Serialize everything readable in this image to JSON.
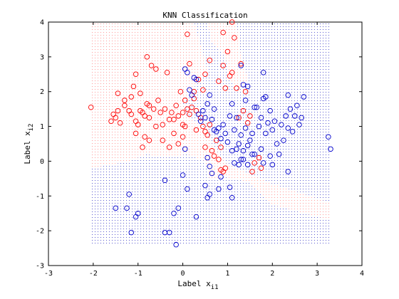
{
  "chart_data": {
    "type": "scatter",
    "title": "KNN Classification",
    "xlabel": "Label x",
    "xlabel_sub": "i1",
    "ylabel": "Label x",
    "ylabel_sub": "i2",
    "xlim": [
      -3,
      4
    ],
    "ylim": [
      -3,
      4
    ],
    "xticks": [
      "-3",
      "-2",
      "-1",
      "0",
      "1",
      "2",
      "3",
      "4"
    ],
    "yticks": [
      "-3",
      "-2",
      "-1",
      "0",
      "1",
      "2",
      "3",
      "4"
    ],
    "grid": false,
    "legend": "none",
    "colors": {
      "red": "#ff0000",
      "blue": "#0000cc",
      "red_region": "#ff9999",
      "blue_region": "#6a6ad8"
    },
    "series": [
      {
        "color": "red",
        "marker": "o",
        "points": [
          [
            -2.05,
            1.55
          ],
          [
            -1.6,
            1.15
          ],
          [
            -1.55,
            1.35
          ],
          [
            -1.5,
            1.25
          ],
          [
            -1.45,
            1.45
          ],
          [
            -1.4,
            1.1
          ],
          [
            -1.45,
            1.95
          ],
          [
            -1.3,
            1.75
          ],
          [
            -1.2,
            1.45
          ],
          [
            -1.15,
            1.35
          ],
          [
            -1.15,
            1.85
          ],
          [
            -1.1,
            2.15
          ],
          [
            -1.05,
            2.5
          ],
          [
            -1.05,
            1.15
          ],
          [
            -1.0,
            1.05
          ],
          [
            -0.95,
            1.45
          ],
          [
            -0.95,
            1.95
          ],
          [
            -0.9,
            1.4
          ],
          [
            -0.85,
            1.3
          ],
          [
            -0.8,
            1.65
          ],
          [
            -0.75,
            1.25
          ],
          [
            -0.75,
            1.6
          ],
          [
            -0.8,
            3.0
          ],
          [
            -0.7,
            2.75
          ],
          [
            -0.6,
            2.65
          ],
          [
            -0.55,
            1.75
          ],
          [
            -0.5,
            1.4
          ],
          [
            -0.45,
            1.05
          ],
          [
            -0.4,
            1.5
          ],
          [
            -0.35,
            2.55
          ],
          [
            -0.3,
            1.2
          ],
          [
            -0.25,
            1.4
          ],
          [
            -0.2,
            1.2
          ],
          [
            -0.15,
            1.6
          ],
          [
            -0.1,
            1.3
          ],
          [
            -0.05,
            2.0
          ],
          [
            0.0,
            1.4
          ],
          [
            0.0,
            1.05
          ],
          [
            0.05,
            1.0
          ],
          [
            0.05,
            1.75
          ],
          [
            0.1,
            1.5
          ],
          [
            0.15,
            1.35
          ],
          [
            0.2,
            1.55
          ],
          [
            0.25,
            1.8
          ],
          [
            0.3,
            1.45
          ],
          [
            0.35,
            2.35
          ],
          [
            0.4,
            1.25
          ],
          [
            0.45,
            1.0
          ],
          [
            0.5,
            2.5
          ],
          [
            0.5,
            0.85
          ],
          [
            0.55,
            0.75
          ],
          [
            0.6,
            1.05
          ],
          [
            0.65,
            0.3
          ],
          [
            0.7,
            0.15
          ],
          [
            0.75,
            0.6
          ],
          [
            0.8,
            2.3
          ],
          [
            0.85,
            0.4
          ],
          [
            0.9,
            2.75
          ],
          [
            0.95,
            2.1
          ],
          [
            1.0,
            3.15
          ],
          [
            1.05,
            2.45
          ],
          [
            1.1,
            2.55
          ],
          [
            1.1,
            4.0
          ],
          [
            1.15,
            3.55
          ],
          [
            1.2,
            2.1
          ],
          [
            1.25,
            1.25
          ],
          [
            1.3,
            2.8
          ],
          [
            1.35,
            1.45
          ],
          [
            1.4,
            2.0
          ],
          [
            1.45,
            1.1
          ],
          [
            0.1,
            3.65
          ],
          [
            0.9,
            3.7
          ],
          [
            1.5,
            1.3
          ],
          [
            1.55,
            -0.3
          ],
          [
            1.6,
            -0.05
          ],
          [
            1.7,
            0.1
          ],
          [
            1.75,
            -0.2
          ],
          [
            0.8,
            0.05
          ],
          [
            0.85,
            -0.25
          ],
          [
            0.9,
            -0.3
          ],
          [
            0.95,
            -0.2
          ],
          [
            -0.9,
            0.4
          ],
          [
            -0.85,
            0.7
          ],
          [
            -0.75,
            0.6
          ],
          [
            -1.05,
            0.8
          ],
          [
            -0.2,
            0.8
          ],
          [
            -0.1,
            0.5
          ],
          [
            0.0,
            0.7
          ],
          [
            0.3,
            0.9
          ],
          [
            0.5,
            0.4
          ],
          [
            -1.3,
            1.6
          ],
          [
            -0.6,
            1.0
          ],
          [
            -0.45,
            0.6
          ],
          [
            0.25,
            2.0
          ],
          [
            0.6,
            2.9
          ],
          [
            -0.65,
            1.5
          ],
          [
            0.15,
            2.8
          ],
          [
            0.45,
            2.05
          ],
          [
            -0.3,
            0.4
          ]
        ]
      },
      {
        "color": "blue",
        "marker": "o",
        "points": [
          [
            0.05,
            2.65
          ],
          [
            0.1,
            2.55
          ],
          [
            0.15,
            2.05
          ],
          [
            0.2,
            1.9
          ],
          [
            0.25,
            2.4
          ],
          [
            0.3,
            2.35
          ],
          [
            0.35,
            1.35
          ],
          [
            0.4,
            1.15
          ],
          [
            0.45,
            1.45
          ],
          [
            0.5,
            1.25
          ],
          [
            0.55,
            1.65
          ],
          [
            0.6,
            1.9
          ],
          [
            0.65,
            1.2
          ],
          [
            0.7,
            1.5
          ],
          [
            0.75,
            0.85
          ],
          [
            0.8,
            0.95
          ],
          [
            0.85,
            0.65
          ],
          [
            0.9,
            1.05
          ],
          [
            0.95,
            0.8
          ],
          [
            1.0,
            0.55
          ],
          [
            1.05,
            1.3
          ],
          [
            1.1,
            0.3
          ],
          [
            1.15,
            0.9
          ],
          [
            1.2,
            0.35
          ],
          [
            1.25,
            0.5
          ],
          [
            1.3,
            0.75
          ],
          [
            1.35,
            0.3
          ],
          [
            1.4,
            0.95
          ],
          [
            1.45,
            0.45
          ],
          [
            1.5,
            0.6
          ],
          [
            1.55,
            0.8
          ],
          [
            1.6,
            0.2
          ],
          [
            1.65,
            1.55
          ],
          [
            1.7,
            1.0
          ],
          [
            1.75,
            1.25
          ],
          [
            1.8,
            1.8
          ],
          [
            1.85,
            0.8
          ],
          [
            1.9,
            1.1
          ],
          [
            1.95,
            1.45
          ],
          [
            2.0,
            0.9
          ],
          [
            2.05,
            1.15
          ],
          [
            2.1,
            0.5
          ],
          [
            2.15,
            0.2
          ],
          [
            2.2,
            1.05
          ],
          [
            2.25,
            0.6
          ],
          [
            2.3,
            1.3
          ],
          [
            2.35,
            0.95
          ],
          [
            2.4,
            1.5
          ],
          [
            2.45,
            0.85
          ],
          [
            2.5,
            1.3
          ],
          [
            2.55,
            1.6
          ],
          [
            2.6,
            1.05
          ],
          [
            2.65,
            1.25
          ],
          [
            2.7,
            1.85
          ],
          [
            3.25,
            0.7
          ],
          [
            3.3,
            0.35
          ],
          [
            1.3,
            2.75
          ],
          [
            1.35,
            2.2
          ],
          [
            1.4,
            1.75
          ],
          [
            1.45,
            2.15
          ],
          [
            1.8,
            2.55
          ],
          [
            1.85,
            1.85
          ],
          [
            2.35,
            1.9
          ],
          [
            1.6,
            1.55
          ],
          [
            1.1,
            1.65
          ],
          [
            1.2,
            1.25
          ],
          [
            0.7,
            0.9
          ],
          [
            0.55,
            0.1
          ],
          [
            0.6,
            -0.15
          ],
          [
            0.65,
            -0.35
          ],
          [
            0.6,
            -0.95
          ],
          [
            0.5,
            -0.7
          ],
          [
            0.55,
            -1.05
          ],
          [
            0.8,
            -0.8
          ],
          [
            0.85,
            -0.45
          ],
          [
            1.05,
            -0.75
          ],
          [
            1.15,
            -0.05
          ],
          [
            1.25,
            -0.1
          ],
          [
            1.3,
            0.05
          ],
          [
            1.45,
            -0.1
          ],
          [
            1.55,
            0.2
          ],
          [
            1.8,
            -0.05
          ],
          [
            1.95,
            0.15
          ],
          [
            2.35,
            -0.3
          ],
          [
            0.1,
            -0.8
          ],
          [
            0.0,
            -0.4
          ],
          [
            -0.4,
            -0.55
          ],
          [
            -0.1,
            -1.35
          ],
          [
            -0.2,
            -1.5
          ],
          [
            -0.3,
            -2.05
          ],
          [
            -0.4,
            -2.05
          ],
          [
            -0.15,
            -2.4
          ],
          [
            0.3,
            -1.6
          ],
          [
            1.1,
            -1.05
          ],
          [
            -1.0,
            -1.5
          ],
          [
            -1.05,
            -1.6
          ],
          [
            -1.15,
            -2.05
          ],
          [
            -1.25,
            -1.35
          ],
          [
            -1.2,
            -0.95
          ],
          [
            -1.5,
            -1.35
          ],
          [
            0.05,
            0.35
          ],
          [
            1.35,
            0.05
          ],
          [
            1.75,
            0.35
          ],
          [
            2.0,
            -0.1
          ]
        ]
      }
    ],
    "decision_regions": {
      "extent_x": [
        -2.05,
        3.3
      ],
      "extent_y": [
        -2.4,
        4.0
      ],
      "red_polygon": [
        [
          -2.05,
          4.0
        ],
        [
          0.25,
          4.0
        ],
        [
          0.45,
          3.1
        ],
        [
          0.55,
          2.6
        ],
        [
          0.3,
          2.2
        ],
        [
          0.0,
          1.7
        ],
        [
          0.05,
          1.35
        ],
        [
          0.5,
          0.95
        ],
        [
          0.65,
          0.5
        ],
        [
          0.95,
          -0.05
        ],
        [
          1.45,
          -0.35
        ],
        [
          2.0,
          -0.65
        ],
        [
          3.3,
          -1.2
        ],
        [
          3.3,
          -1.7
        ],
        [
          2.0,
          -1.25
        ],
        [
          1.5,
          -0.6
        ],
        [
          0.9,
          -0.45
        ],
        [
          0.6,
          -0.55
        ],
        [
          0.5,
          0.0
        ],
        [
          0.1,
          0.2
        ],
        [
          -0.4,
          0.1
        ],
        [
          -0.8,
          0.2
        ],
        [
          -1.2,
          0.0
        ],
        [
          -2.05,
          -0.2
        ]
      ],
      "red_polygon_top": [
        [
          0.55,
          4.0
        ],
        [
          1.2,
          4.0
        ],
        [
          1.3,
          3.0
        ],
        [
          1.45,
          2.4
        ],
        [
          1.35,
          2.05
        ],
        [
          1.05,
          2.3
        ],
        [
          0.95,
          3.0
        ],
        [
          0.65,
          3.4
        ]
      ]
    }
  }
}
